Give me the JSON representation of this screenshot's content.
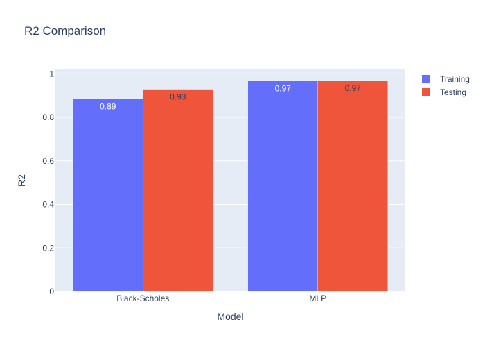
{
  "chart_data": {
    "type": "bar",
    "title": "R2 Comparison",
    "xlabel": "Model",
    "ylabel": "R2",
    "categories": [
      "Black-Scholes",
      "MLP"
    ],
    "series": [
      {
        "name": "Training",
        "values": [
          0.885,
          0.967
        ],
        "labels": [
          "0.89",
          "0.97"
        ],
        "color": "#636efa",
        "label_color": "#ffffff"
      },
      {
        "name": "Testing",
        "values": [
          0.929,
          0.969
        ],
        "labels": [
          "0.93",
          "0.97"
        ],
        "color": "#ef553b",
        "label_color": "#2a3f5f"
      }
    ],
    "ylim": [
      0,
      1.02
    ],
    "yticks": [
      0,
      0.2,
      0.4,
      0.6,
      0.8,
      1
    ],
    "ytick_labels": [
      "0",
      "0.2",
      "0.4",
      "0.6",
      "0.8",
      "1"
    ],
    "grid": true,
    "legend_position": "top-right",
    "colors": {
      "plot_bg": "#e5ecf6",
      "grid": "#ffffff",
      "text": "#2a3f5f"
    }
  }
}
